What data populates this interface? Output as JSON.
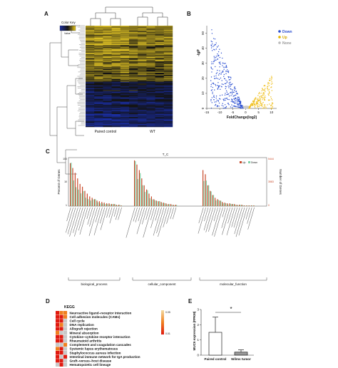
{
  "panels": {
    "A": {
      "letter": "A",
      "color_key_title": "Color Key",
      "color_key_sub": "Value",
      "columns": [
        "Paired control",
        "WT"
      ],
      "colors": {
        "low": "#1a2fa8",
        "mid": "#111111",
        "high": "#e0c020"
      }
    },
    "B": {
      "letter": "B",
      "legend": [
        "Down",
        "Up",
        "None"
      ],
      "legend_colors": [
        "#2b4fd1",
        "#f0c020",
        "#c9c9c9"
      ]
    },
    "C": {
      "letter": "C",
      "title": "T_C",
      "legend": [
        "Up",
        "Down"
      ],
      "ylabel_left": "Percent of Genes",
      "ylabel_right": "Number of Genes",
      "left_ticks": [
        "100",
        "10",
        "1"
      ],
      "right_ticks": [
        "5444",
        "3583",
        "0"
      ],
      "groups": [
        "biological_process",
        "cellular_component",
        "molecular_function"
      ],
      "colors": {
        "up": "#c84a2a",
        "down": "#7fd3a8"
      }
    },
    "D": {
      "letter": "D",
      "title": "KEGG",
      "scale_ticks": [
        "0.05",
        "0.01"
      ],
      "terms": [
        "Neuroactive ligand–receptor interaction",
        "Cell adhesion molecules (CAMs)",
        "Cell cycle",
        "DNA replication",
        "Allograft rejection",
        "Mineral absorption",
        "Cytokine–cytokine receptor interaction",
        "Rheumatoid arthritis",
        "Complement and coagulation cascades",
        "Systemic lupus erythematosus",
        "Staphylococcus aureus infection",
        "Intestinal immune network for IgA production",
        "Graft–versus–host disease",
        "Hematopoietic cell lineage"
      ]
    },
    "E": {
      "letter": "E",
      "ylabel": "MUC6 expression (FPKM)",
      "significance": "*"
    }
  },
  "chart_data": [
    {
      "type": "scatter",
      "panel": "B",
      "xlabel": "FoldChange(log2)",
      "ylabel": "-lgP",
      "xlim": [
        -15,
        12
      ],
      "ylim": [
        0,
        55
      ],
      "x_ticks": [
        -15,
        -10,
        -5,
        0,
        5,
        10
      ],
      "y_ticks": [
        0,
        10,
        20,
        30,
        40,
        50
      ],
      "series": [
        {
          "name": "Down",
          "color": "#2b4fd1"
        },
        {
          "name": "Up",
          "color": "#f0c020"
        },
        {
          "name": "None",
          "color": "#c9c9c9"
        }
      ]
    },
    {
      "type": "bar",
      "panel": "E",
      "categories": [
        "Paired control",
        "Wilms tumor"
      ],
      "values": [
        1.5,
        0.2
      ],
      "errors": [
        1.0,
        0.15
      ],
      "ylabel": "MUC6 expression (FPKM)",
      "ylim": [
        0,
        3
      ],
      "y_ticks": [
        0,
        1,
        2,
        3
      ]
    }
  ]
}
